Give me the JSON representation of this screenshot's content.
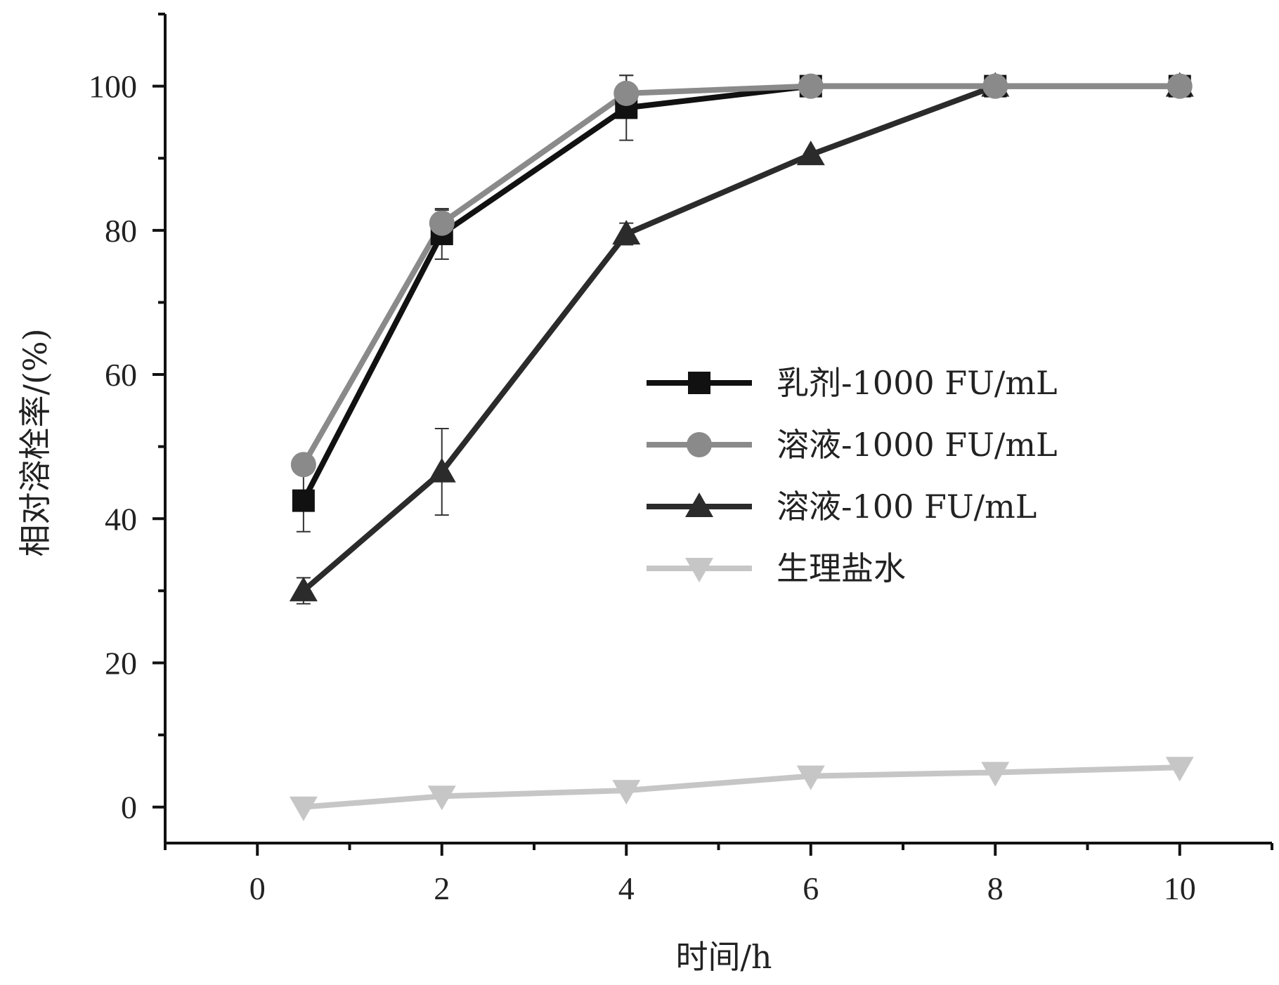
{
  "chart_data": {
    "type": "line",
    "title": "",
    "xlabel": "时间/h",
    "ylabel": "相对溶栓率/(%)",
    "xlim": [
      -1,
      11
    ],
    "ylim": [
      -5,
      110
    ],
    "x_ticks": [
      0,
      2,
      4,
      6,
      8,
      10
    ],
    "y_ticks": [
      0,
      20,
      40,
      60,
      80,
      100
    ],
    "grid": false,
    "legend_position": "center-right",
    "x": [
      0.5,
      2,
      4,
      6,
      8,
      10
    ],
    "series": [
      {
        "name": "乳剂-1000 FU/mL",
        "marker": "square",
        "color": "#111111",
        "values": [
          42.5,
          79.5,
          97,
          100,
          100,
          100
        ],
        "errors": [
          4.3,
          3.5,
          4.5,
          0,
          0,
          0
        ]
      },
      {
        "name": "溶液-1000 FU/mL",
        "marker": "circle",
        "color": "#8a8a8a",
        "values": [
          47.5,
          81,
          99,
          100,
          100,
          100
        ],
        "errors": [
          1.2,
          1.8,
          2.5,
          0,
          0,
          0
        ]
      },
      {
        "name": "溶液-100 FU/mL",
        "marker": "triangle-up",
        "color": "#2b2b2b",
        "values": [
          30,
          46.5,
          79.5,
          90.5,
          100,
          100
        ],
        "errors": [
          1.8,
          6,
          1.5,
          0,
          0,
          0
        ]
      },
      {
        "name": "生理盐水",
        "marker": "triangle-down",
        "color": "#c6c6c6",
        "values": [
          0,
          1.5,
          2.3,
          4.3,
          4.8,
          5.5
        ],
        "errors": [
          0,
          0,
          0,
          0,
          0,
          0
        ]
      }
    ]
  }
}
